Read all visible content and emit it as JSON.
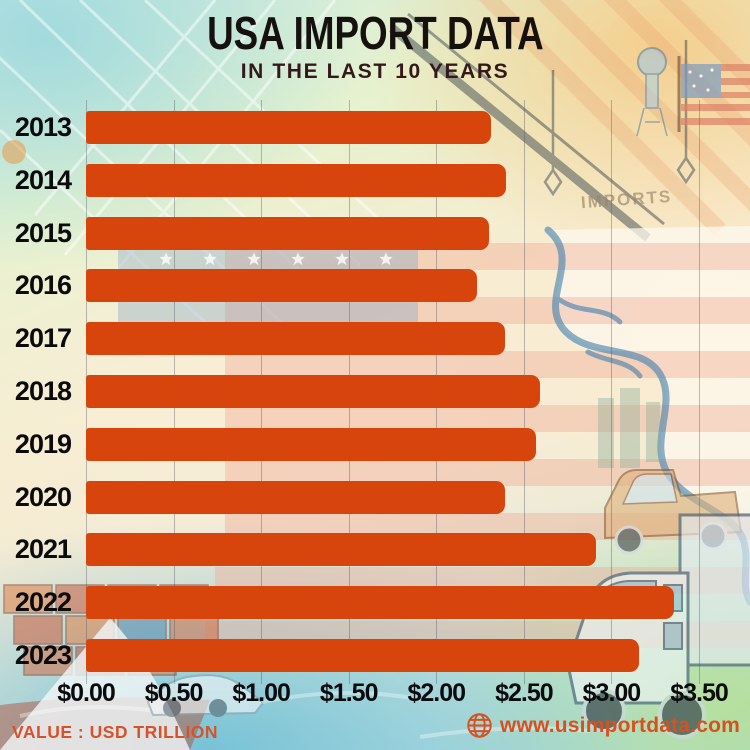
{
  "title": "USA IMPORT DATA",
  "subtitle": "IN THE LAST 10 YEARS",
  "background": {
    "watermark": "IMPORTS"
  },
  "chart_data": {
    "type": "bar",
    "orientation": "horizontal",
    "title": "USA IMPORT DATA",
    "subtitle": "IN THE LAST 10 YEARS",
    "categories": [
      "2013",
      "2014",
      "2015",
      "2016",
      "2017",
      "2018",
      "2019",
      "2020",
      "2021",
      "2022",
      "2023"
    ],
    "values": [
      2.31,
      2.4,
      2.3,
      2.23,
      2.39,
      2.59,
      2.57,
      2.39,
      2.91,
      3.36,
      3.16
    ],
    "unit": "USD trillion",
    "xlabel": "",
    "ylabel": "",
    "xlim": [
      0,
      3.5
    ],
    "x_tick_values": [
      0,
      0.5,
      1.0,
      1.5,
      2.0,
      2.5,
      3.0,
      3.5
    ],
    "x_tick_labels": [
      "$0.00",
      "$0.50",
      "$1.00",
      "$1.50",
      "$2.00",
      "$2.50",
      "$3.00",
      "$3.50"
    ],
    "grid": true,
    "legend": "none",
    "bar_color": "#d8450c"
  },
  "footer": {
    "note": "VALUE : USD TRILLION",
    "website": "www.usimportdata.com"
  },
  "colors": {
    "bar": "#d8450c",
    "accent_orange": "#d6511f",
    "title_text": "#16100f",
    "axis_text": "#0b0b0d"
  }
}
